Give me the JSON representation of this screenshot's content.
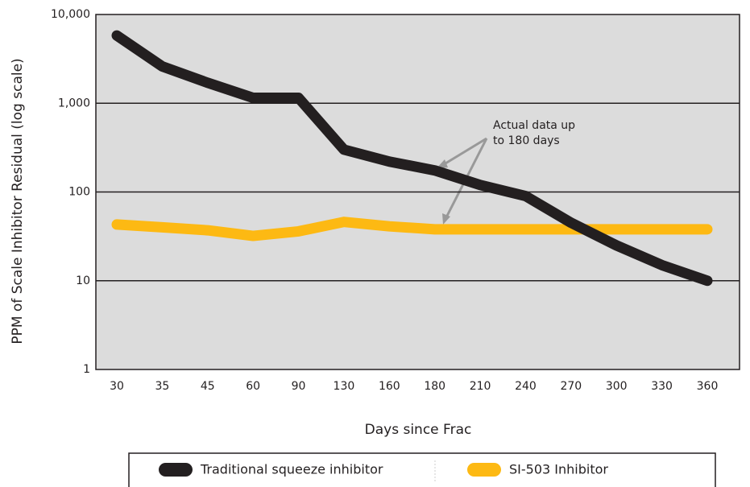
{
  "chart_data": {
    "type": "line",
    "x_label": "Days since Frac",
    "y_label": "PPM of Scale Inhibitor Residual (log scale)",
    "annotation": [
      "Actual data up",
      "to 180 days"
    ],
    "categories": [
      "30",
      "35",
      "45",
      "60",
      "90",
      "130",
      "160",
      "180",
      "210",
      "240",
      "270",
      "300",
      "330",
      "360"
    ],
    "series": [
      {
        "name": "Traditional squeeze inhibitor",
        "color": "#231f20",
        "values": [
          5800,
          2600,
          1700,
          1150,
          1150,
          300,
          220,
          175,
          120,
          90,
          45,
          25,
          15,
          10
        ]
      },
      {
        "name": "SI-503 Inhibitor",
        "color": "#fdb913",
        "values": [
          43,
          40,
          37,
          32,
          36,
          46,
          41,
          38,
          38,
          38,
          38,
          38,
          38,
          38
        ]
      }
    ],
    "log_scale": true,
    "ylim": [
      1,
      10000
    ],
    "yticks": [
      1,
      10,
      100,
      {
        "value": 1000,
        "label": "1,000"
      },
      {
        "value": 10000,
        "label": "10,000"
      }
    ],
    "grid": true
  }
}
